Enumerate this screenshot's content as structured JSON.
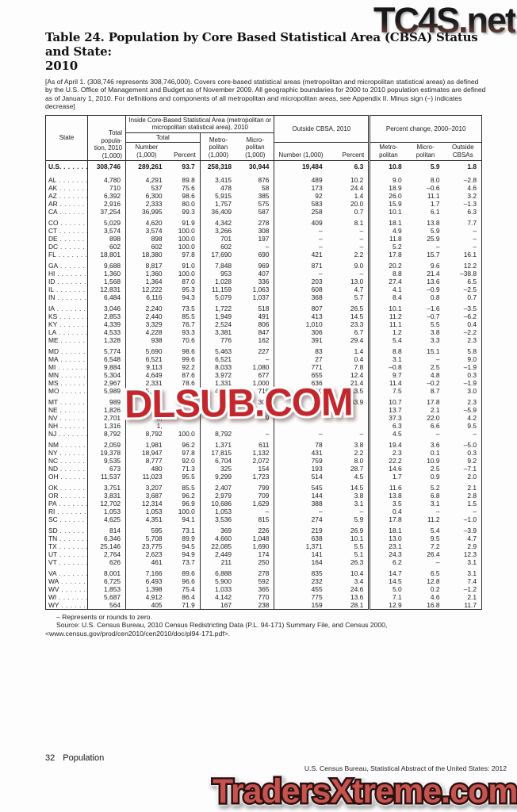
{
  "watermarks": {
    "top_right": "TC4S.net",
    "center": "DLSUB.COM",
    "bottom": "TradersXtreme.com"
  },
  "page": {
    "title_line1": "Table 24. Population by Core Based Statistical Area (CBSA) Status and State:",
    "title_line2": "2010",
    "note": "[As of April 1. (308,746 represents 308,746,000). Covers core-based statistical areas (metropolitan and micropolitan statistical areas) as defined by the U.S. Office of Management and Budget as of November 2009. All geographic boundaries for 2000 to 2010 population estimates are defined as of January 1, 2010. For definitions and components of all metropolitan and micropolitan areas, see Appendix II. Minus sign (–) indicates decrease]",
    "dash_note": "– Represents or rounds to zero.",
    "source_note": "Source: U.S. Census Bureau, 2010 Census Redistricting Data (P.L. 94-171) Summary File, and Census 2000, <www.census.gov/prod/cen2010/cen2010/doc/pl94-171.pdf>.",
    "page_number": "32",
    "page_section": "Population",
    "bottom_source": "U.S. Census Bureau, Statistical Abstract of the United States: 2012"
  },
  "table": {
    "leader_dots": ". . . . . . .",
    "headers": {
      "state": "State",
      "total_pop": "Total popula- tion, 2010 (1,000)",
      "inside_group": "Inside Core-Based Statistical Area (metropolitan or micropolitan statistical area), 2010",
      "outside_group": "Outside CBSA, 2010",
      "pct_change_group": "Percent change, 2000–2010",
      "total_sub": "Total",
      "number_k": "Number (1,000)",
      "percent": "Percent",
      "metro_k": "Metro- politan (1,000)",
      "micro_k": "Micro- politan (1,000)",
      "metro": "Metro- politan",
      "micro": "Micro- politan",
      "outside_cbsas": "Outside CBSAs"
    },
    "rows": [
      {
        "bold": true,
        "cells": [
          "U.S.",
          "308,746",
          "289,261",
          "93.7",
          "258,318",
          "30,944",
          "19,484",
          "6.3",
          "10.8",
          "5.9",
          "1.8"
        ]
      },
      {
        "gap": true,
        "cells": [
          "AL",
          "4,780",
          "4,291",
          "89.8",
          "3,415",
          "876",
          "489",
          "10.2",
          "9.0",
          "8.0",
          "–2.8"
        ]
      },
      {
        "cells": [
          "AK",
          "710",
          "537",
          "75.6",
          "478",
          "58",
          "173",
          "24.4",
          "18.9",
          "–0.6",
          "4.6"
        ]
      },
      {
        "cells": [
          "AZ",
          "6,392",
          "6,300",
          "98.6",
          "5,915",
          "385",
          "92",
          "1.4",
          "26.0",
          "11.1",
          "3.2"
        ]
      },
      {
        "cells": [
          "AR",
          "2,916",
          "2,333",
          "80.0",
          "1,757",
          "575",
          "583",
          "20.0",
          "15.9",
          "1.7",
          "–1.3"
        ]
      },
      {
        "cells": [
          "CA",
          "37,254",
          "36,995",
          "99.3",
          "36,409",
          "587",
          "258",
          "0.7",
          "10.1",
          "6.1",
          "6.3"
        ]
      },
      {
        "gap": true,
        "cells": [
          "CO",
          "5,029",
          "4,620",
          "91.9",
          "4,342",
          "278",
          "409",
          "8.1",
          "18.1",
          "13.8",
          "7.7"
        ]
      },
      {
        "cells": [
          "CT",
          "3,574",
          "3,574",
          "100.0",
          "3,266",
          "308",
          "–",
          "–",
          "4.9",
          "5.9",
          "–"
        ]
      },
      {
        "cells": [
          "DE",
          "898",
          "898",
          "100.0",
          "701",
          "197",
          "–",
          "–",
          "11.8",
          "25.9",
          "–"
        ]
      },
      {
        "cells": [
          "DC",
          "602",
          "602",
          "100.0",
          "602",
          "–",
          "–",
          "–",
          "5.2",
          "–",
          "–"
        ]
      },
      {
        "cells": [
          "FL",
          "18,801",
          "18,380",
          "97.8",
          "17,690",
          "690",
          "421",
          "2.2",
          "17.8",
          "15.7",
          "16.1"
        ]
      },
      {
        "gap": true,
        "cells": [
          "GA",
          "9,688",
          "8,817",
          "91.0",
          "7,848",
          "969",
          "871",
          "9.0",
          "20.2",
          "9.6",
          "12.2"
        ]
      },
      {
        "cells": [
          "HI",
          "1,360",
          "1,360",
          "100.0",
          "953",
          "407",
          "–",
          "–",
          "8.8",
          "21.4",
          "–38.8"
        ]
      },
      {
        "cells": [
          "ID",
          "1,568",
          "1,364",
          "87.0",
          "1,028",
          "336",
          "203",
          "13.0",
          "27.4",
          "13.6",
          "6.5"
        ]
      },
      {
        "cells": [
          "IL",
          "12,831",
          "12,222",
          "95.3",
          "11,159",
          "1,063",
          "608",
          "4.7",
          "4.1",
          "–0.9",
          "–2.5"
        ]
      },
      {
        "cells": [
          "IN",
          "6,484",
          "6,116",
          "94.3",
          "5,079",
          "1,037",
          "368",
          "5.7",
          "8.4",
          "0.8",
          "0.7"
        ]
      },
      {
        "gap": true,
        "cells": [
          "IA",
          "3,046",
          "2,240",
          "73.5",
          "1,722",
          "518",
          "807",
          "26.5",
          "10.1",
          "–1.6",
          "–3.5"
        ]
      },
      {
        "cells": [
          "KS",
          "2,853",
          "2,440",
          "85.5",
          "1,949",
          "491",
          "413",
          "14.5",
          "11.2",
          "–0.7",
          "–6.2"
        ]
      },
      {
        "cells": [
          "KY",
          "4,339",
          "3,329",
          "76.7",
          "2,524",
          "806",
          "1,010",
          "23.3",
          "11.1",
          "5.5",
          "0.4"
        ]
      },
      {
        "cells": [
          "LA",
          "4,533",
          "4,228",
          "93.3",
          "3,381",
          "847",
          "306",
          "6.7",
          "1.2",
          "3.8",
          "–2.2"
        ]
      },
      {
        "cells": [
          "ME",
          "1,328",
          "938",
          "70.6",
          "776",
          "162",
          "391",
          "29.4",
          "5.4",
          "3.3",
          "2.3"
        ]
      },
      {
        "gap": true,
        "cells": [
          "MD",
          "5,774",
          "5,690",
          "98.6",
          "5,463",
          "227",
          "83",
          "1.4",
          "8.8",
          "15.1",
          "5.8"
        ]
      },
      {
        "cells": [
          "MA",
          "6,548",
          "6,521",
          "99.6",
          "6,521",
          "–",
          "27",
          "0.4",
          "3.1",
          "–",
          "9.0"
        ]
      },
      {
        "cells": [
          "MI",
          "9,884",
          "9,113",
          "92.2",
          "8,033",
          "1,080",
          "771",
          "7.8",
          "–0.8",
          "2.5",
          "–1.9"
        ]
      },
      {
        "cells": [
          "MN",
          "5,304",
          "4,649",
          "87.6",
          "3,972",
          "677",
          "655",
          "12.4",
          "9.7",
          "4.8",
          "0.3"
        ]
      },
      {
        "cells": [
          "MS",
          "2,967",
          "2,331",
          "78.6",
          "1,331",
          "1,000",
          "636",
          "21.4",
          "11.4",
          "–0.2",
          "–1.9"
        ]
      },
      {
        "cells": [
          "MO",
          "5,989",
          "5,179",
          "86.5",
          "4,464",
          "715",
          "810",
          "13.5",
          "7.5",
          "8.7",
          "3.0"
        ]
      },
      {
        "gap": true,
        "cells": [
          "MT",
          "989",
          "654",
          "66.1",
          "349",
          "306",
          "335",
          "33.9",
          "10.7",
          "17.8",
          "2.3"
        ]
      },
      {
        "cells": [
          "NE",
          "1,826",
          "1,",
          "",
          "",
          "4",
          "",
          "",
          "13.7",
          "2.1",
          "–5.9"
        ]
      },
      {
        "cells": [
          "NV",
          "2,701",
          "2,",
          "",
          "",
          "9",
          "",
          "",
          "37.3",
          "22.0",
          "4.2"
        ]
      },
      {
        "cells": [
          "NH",
          "1,316",
          "1,",
          "",
          "",
          "",
          "",
          "",
          "6.3",
          "6.6",
          "9.5"
        ]
      },
      {
        "cells": [
          "NJ",
          "8,792",
          "8,792",
          "100.0",
          "8,792",
          "–",
          "–",
          "–",
          "4.5",
          "–",
          "–"
        ]
      },
      {
        "gap": true,
        "cells": [
          "NM",
          "2,059",
          "1,981",
          "96.2",
          "1,371",
          "611",
          "78",
          "3.8",
          "19.4",
          "3.6",
          "–5.0"
        ]
      },
      {
        "cells": [
          "NY",
          "19,378",
          "18,947",
          "97.8",
          "17,815",
          "1,132",
          "431",
          "2.2",
          "2.3",
          "0.1",
          "0.3"
        ]
      },
      {
        "cells": [
          "NC",
          "9,535",
          "8,777",
          "92.0",
          "6,704",
          "2,072",
          "759",
          "8.0",
          "22.2",
          "10.9",
          "9.2"
        ]
      },
      {
        "cells": [
          "ND",
          "673",
          "480",
          "71.3",
          "325",
          "154",
          "193",
          "28.7",
          "14.6",
          "2.5",
          "–7.1"
        ]
      },
      {
        "cells": [
          "OH",
          "11,537",
          "11,023",
          "95.5",
          "9,299",
          "1,723",
          "514",
          "4.5",
          "1.7",
          "0.9",
          "2.0"
        ]
      },
      {
        "gap": true,
        "cells": [
          "OK",
          "3,751",
          "3,207",
          "85.5",
          "2,407",
          "799",
          "545",
          "14.5",
          "11.6",
          "5.2",
          "2.1"
        ]
      },
      {
        "cells": [
          "OR",
          "3,831",
          "3,687",
          "96.2",
          "2,979",
          "709",
          "144",
          "3.8",
          "13.8",
          "6.8",
          "2.8"
        ]
      },
      {
        "cells": [
          "PA",
          "12,702",
          "12,314",
          "96.9",
          "10,686",
          "1,629",
          "388",
          "3.1",
          "3.5",
          "3.1",
          "1.5"
        ]
      },
      {
        "cells": [
          "RI",
          "1,053",
          "1,053",
          "100.0",
          "1,053",
          "–",
          "–",
          "–",
          "0.4",
          "–",
          "–"
        ]
      },
      {
        "cells": [
          "SC",
          "4,625",
          "4,351",
          "94.1",
          "3,536",
          "815",
          "274",
          "5.9",
          "17.8",
          "11.2",
          "–1.0"
        ]
      },
      {
        "gap": true,
        "cells": [
          "SD",
          "814",
          "595",
          "73.1",
          "369",
          "226",
          "219",
          "26.9",
          "18.1",
          "5.4",
          "–3.9"
        ]
      },
      {
        "cells": [
          "TN",
          "6,346",
          "5,708",
          "89.9",
          "4,660",
          "1,048",
          "638",
          "10.1",
          "13.0",
          "9.5",
          "4.7"
        ]
      },
      {
        "cells": [
          "TX",
          "25,146",
          "23,775",
          "94.5",
          "22,085",
          "1,690",
          "1,371",
          "5.5",
          "23.1",
          "7.2",
          "2.9"
        ]
      },
      {
        "cells": [
          "UT",
          "2,764",
          "2,623",
          "94.9",
          "2,449",
          "174",
          "141",
          "5.1",
          "24.3",
          "26.4",
          "12.3"
        ]
      },
      {
        "cells": [
          "VT",
          "626",
          "461",
          "73.7",
          "211",
          "250",
          "164",
          "26.3",
          "6.2",
          "–",
          "3.1"
        ]
      },
      {
        "gap": true,
        "cells": [
          "VA",
          "8,001",
          "7,166",
          "89.6",
          "6,888",
          "278",
          "835",
          "10.4",
          "14.7",
          "6.5",
          "3.1"
        ]
      },
      {
        "cells": [
          "WA",
          "6,725",
          "6,493",
          "96.6",
          "5,900",
          "592",
          "232",
          "3.4",
          "14.5",
          "12.8",
          "7.4"
        ]
      },
      {
        "cells": [
          "WV",
          "1,853",
          "1,398",
          "75.4",
          "1,033",
          "365",
          "455",
          "24.6",
          "5.0",
          "0.2",
          "–1.2"
        ]
      },
      {
        "cells": [
          "WI",
          "5,687",
          "4,912",
          "86.4",
          "4,142",
          "770",
          "775",
          "13.6",
          "7.1",
          "4.6",
          "2.1"
        ]
      },
      {
        "cells": [
          "WY",
          "564",
          "405",
          "71.9",
          "167",
          "238",
          "159",
          "28.1",
          "12.9",
          "16.8",
          "11.7"
        ]
      }
    ]
  }
}
